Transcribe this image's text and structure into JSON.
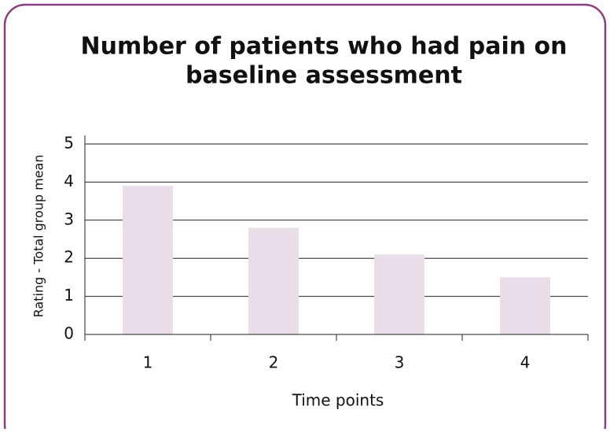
{
  "chart_data": {
    "type": "bar",
    "title": [
      "Number of patients who had pain on",
      "baseline assessment"
    ],
    "x_label": "Time points",
    "y_label": "Rating - Total group mean",
    "categories": [
      "1",
      "2",
      "3",
      "4"
    ],
    "values": [
      3.9,
      2.8,
      2.1,
      1.5
    ],
    "color": "#e8dde8",
    "ylim": [
      0,
      5
    ],
    "yticks": [
      0,
      1,
      2,
      3,
      4,
      5
    ],
    "grid": true
  }
}
